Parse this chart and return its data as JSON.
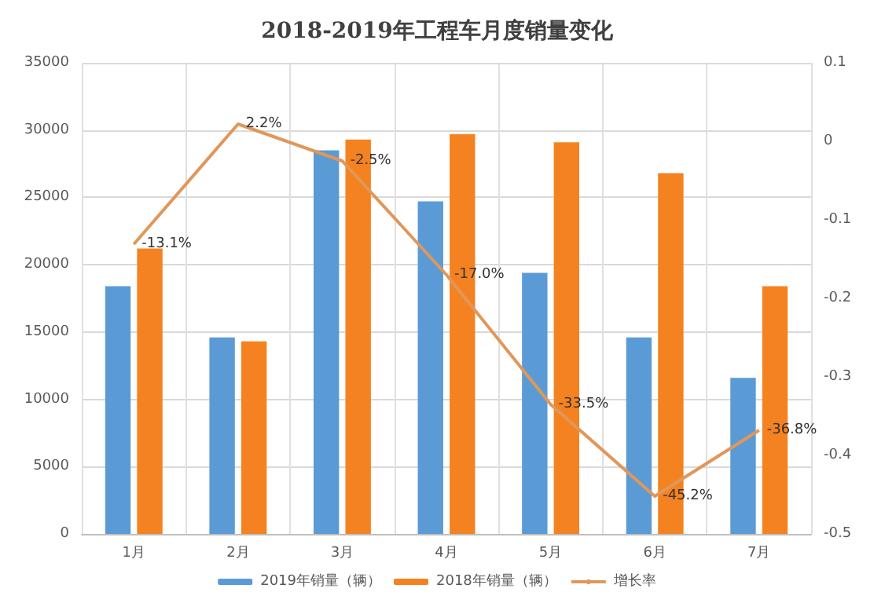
{
  "chart_data": {
    "type": "bar",
    "title": "2018-2019年工程车月度销量变化",
    "categories": [
      "1月",
      "2月",
      "3月",
      "4月",
      "5月",
      "6月",
      "7月"
    ],
    "series": [
      {
        "name": "2019年销量（辆）",
        "color": "#5b9bd5",
        "values": [
          18400,
          14600,
          28500,
          24700,
          19400,
          14600,
          11600
        ]
      },
      {
        "name": "2018年销量（辆）",
        "color": "#f58220",
        "values": [
          21200,
          14300,
          29300,
          29700,
          29100,
          26800,
          18400
        ]
      },
      {
        "name": "增长率",
        "type": "line",
        "axis": "y2",
        "color": "#e0975a",
        "marker": "none",
        "values": [
          -0.131,
          0.022,
          -0.025,
          -0.17,
          -0.335,
          -0.452,
          -0.368
        ],
        "value_labels": [
          "-13.1%",
          "2.2%",
          "-2.5%",
          "-17.0%",
          "-33.5%",
          "-45.2%",
          "-36.8%"
        ]
      }
    ],
    "ylim": [
      0,
      35000
    ],
    "yticks": [
      0,
      5000,
      10000,
      15000,
      20000,
      25000,
      30000,
      35000
    ],
    "y2lim": [
      -0.5,
      0.1
    ],
    "y2ticks": [
      -0.5,
      -0.4,
      -0.3,
      -0.2,
      -0.1,
      0,
      0.1
    ],
    "grid": true,
    "legend": "bottom"
  }
}
